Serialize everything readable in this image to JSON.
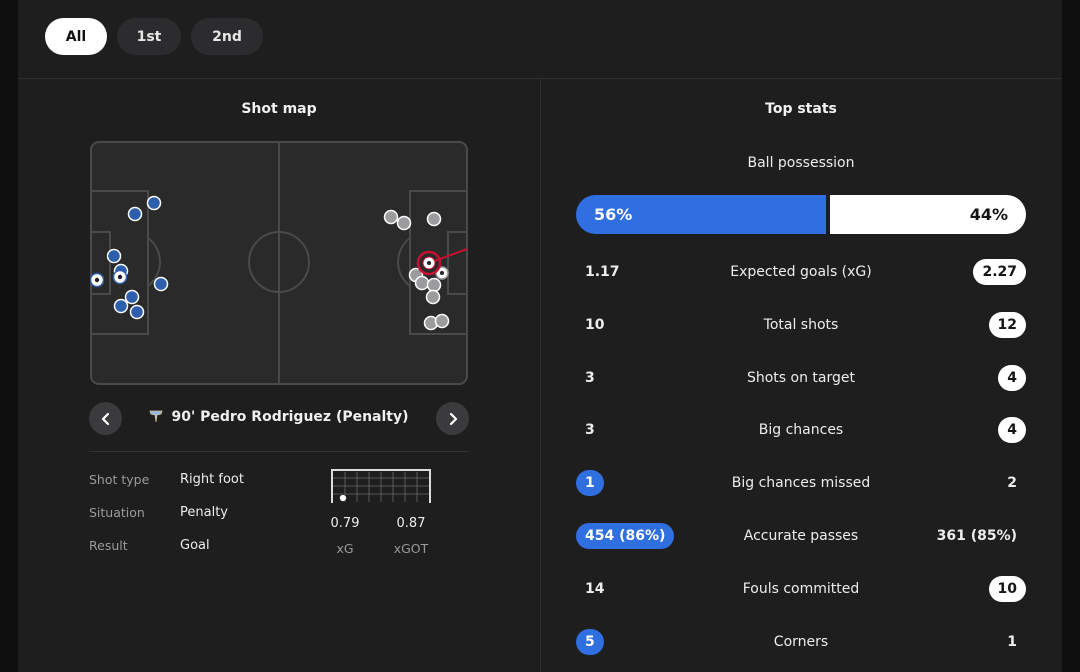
{
  "tabs": [
    {
      "label": "All",
      "active": true
    },
    {
      "label": "1st",
      "active": false
    },
    {
      "label": "2nd",
      "active": false
    }
  ],
  "shot_map": {
    "title": "Shot map",
    "selected_shot": {
      "minute": "90'",
      "player": "Pedro Rodriguez",
      "type": "(Penalty)",
      "details": [
        {
          "label": "Shot type",
          "value": "Right foot"
        },
        {
          "label": "Situation",
          "value": "Penalty"
        },
        {
          "label": "Result",
          "value": "Goal"
        }
      ],
      "xg": {
        "value": "0.79",
        "label": "xG"
      },
      "xgot": {
        "value": "0.87",
        "label": "xGOT"
      }
    },
    "icons": {
      "prev": "chevron-left-icon",
      "next": "chevron-right-icon",
      "badge": "club-badge-icon"
    }
  },
  "top_stats": {
    "title": "Top stats",
    "possession": {
      "label": "Ball possession",
      "home": "56%",
      "away": "44%",
      "home_fraction": 0.56
    },
    "rows": [
      {
        "label": "Expected goals (xG)",
        "home": "1.17",
        "away": "2.27",
        "highlight": "away"
      },
      {
        "label": "Total shots",
        "home": "10",
        "away": "12",
        "highlight": "away"
      },
      {
        "label": "Shots on target",
        "home": "3",
        "away": "4",
        "highlight": "away"
      },
      {
        "label": "Big chances",
        "home": "3",
        "away": "4",
        "highlight": "away"
      },
      {
        "label": "Big chances missed",
        "home": "1",
        "away": "2",
        "highlight": "home"
      },
      {
        "label": "Accurate passes",
        "home": "454 (86%)",
        "away": "361 (85%)",
        "highlight": "home"
      },
      {
        "label": "Fouls committed",
        "home": "14",
        "away": "10",
        "highlight": "away"
      },
      {
        "label": "Corners",
        "home": "5",
        "away": "1",
        "highlight": "home"
      }
    ]
  },
  "colors": {
    "home": "#2f6fe0",
    "away": "#ffffff",
    "selected_shot": "#c8102e",
    "panel": "#1e1e1f"
  }
}
